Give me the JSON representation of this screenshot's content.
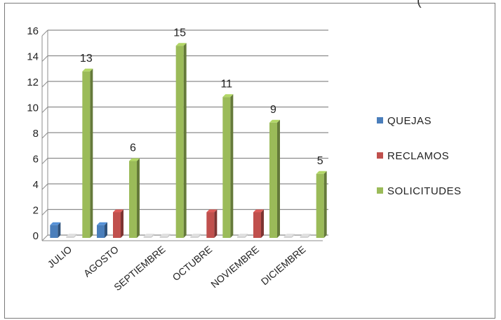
{
  "chart_data": {
    "type": "bar",
    "title": "",
    "xlabel": "",
    "ylabel": "",
    "categories": [
      "JULIO",
      "AGOSTO",
      "SEPTIEMBRE",
      "OCTUBRE",
      "NOVIEMBRE",
      "DICIEMBRE"
    ],
    "series": [
      {
        "name": "QUEJAS",
        "values": [
          1,
          1,
          0,
          0,
          0,
          0
        ],
        "color": "#4a7ebb"
      },
      {
        "name": "RECLAMOS",
        "values": [
          0,
          2,
          0,
          2,
          2,
          0
        ],
        "color": "#c0504d"
      },
      {
        "name": "SOLICITUDES",
        "values": [
          13,
          6,
          15,
          11,
          9,
          5
        ],
        "color": "#9bbb59"
      }
    ],
    "data_labels": {
      "SOLICITUDES": [
        "13",
        "6",
        "15",
        "11",
        "9",
        "5"
      ]
    },
    "ylim": [
      0,
      16
    ],
    "yticks": [
      "0",
      "2",
      "4",
      "6",
      "8",
      "10",
      "12",
      "14",
      "16"
    ],
    "grid": true,
    "legend": "right"
  },
  "stray_mark": "("
}
